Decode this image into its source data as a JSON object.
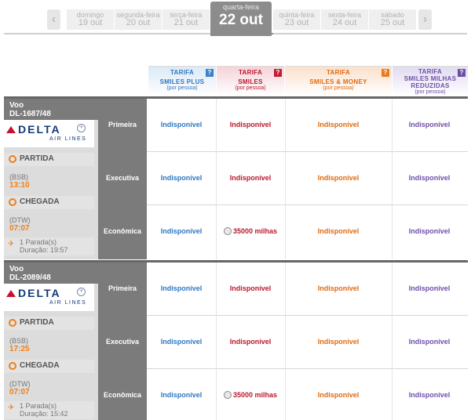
{
  "date_nav": {
    "prev_icon": "chevron-left-icon",
    "next_icon": "chevron-right-icon",
    "days": [
      {
        "weekday": "domingo",
        "date": "19 out"
      },
      {
        "weekday": "segunda-feira",
        "date": "20 out"
      },
      {
        "weekday": "terça-feira",
        "date": "21 out"
      },
      {
        "weekday": "quarta-feira",
        "date": "22 out",
        "selected": true
      },
      {
        "weekday": "quinta-feira",
        "date": "23 out"
      },
      {
        "weekday": "sexta-feira",
        "date": "24 out"
      },
      {
        "weekday": "sábado",
        "date": "25 out"
      }
    ]
  },
  "fare_headers": [
    {
      "line1": "TARIFA",
      "line2": "SMILES PLUS",
      "line3": "",
      "per_person": "(por pessoa)",
      "help": "?",
      "color": "#2e77c0"
    },
    {
      "line1": "TARIFA",
      "line2": "SMILES",
      "line3": "",
      "per_person": "(por pessoa)",
      "help": "?",
      "color": "#b9182c"
    },
    {
      "line1": "TARIFA",
      "line2": "SMILES & MONEY",
      "line3": "",
      "per_person": "(por pessoa)",
      "help": "?",
      "color": "#e06a10"
    },
    {
      "line1": "TARIFA",
      "line2": "SMILES MILHAS",
      "line3": "REDUZIDAS",
      "per_person": "(por pessoa)",
      "help": "?",
      "color": "#6f4fa8"
    }
  ],
  "flights": [
    {
      "voo_label": "Voo",
      "number": "DL-1687/48",
      "airline_logo": {
        "word": "DELTA",
        "sub": "AIR LINES"
      },
      "departure_label": "PARTIDA",
      "departure_code": "(BSB)",
      "departure_time": "13:10",
      "arrival_label": "CHEGADA",
      "arrival_code": "(DTW)",
      "arrival_time": "07:07",
      "stops": "1 Parada(s)",
      "duration": "Duração: 19:57",
      "cabins": [
        {
          "name": "Primeira",
          "plus": "Indisponível",
          "smiles": "Indisponível",
          "money": "Indisponível",
          "reduzidas": "Indisponível"
        },
        {
          "name": "Executiva",
          "plus": "Indisponível",
          "smiles": "Indisponível",
          "money": "Indisponível",
          "reduzidas": "Indisponível"
        },
        {
          "name": "Econômica",
          "plus": "Indisponível",
          "smiles": "35000 milhas",
          "money": "Indisponível",
          "reduzidas": "Indisponível"
        }
      ]
    },
    {
      "voo_label": "Voo",
      "number": "DL-2089/48",
      "airline_logo": {
        "word": "DELTA",
        "sub": "AIR LINES"
      },
      "departure_label": "PARTIDA",
      "departure_code": "(BSB)",
      "departure_time": "17:25",
      "arrival_label": "CHEGADA",
      "arrival_code": "(DTW)",
      "arrival_time": "07:07",
      "stops": "1 Parada(s)",
      "duration": "Duração: 15:42",
      "cabins": [
        {
          "name": "Primeira",
          "plus": "Indisponível",
          "smiles": "Indisponível",
          "money": "Indisponível",
          "reduzidas": "Indisponível"
        },
        {
          "name": "Executiva",
          "plus": "Indisponível",
          "smiles": "Indisponível",
          "money": "Indisponível",
          "reduzidas": "Indisponível"
        },
        {
          "name": "Econômica",
          "plus": "Indisponível",
          "smiles": "35000 milhas",
          "money": "Indisponível",
          "reduzidas": "Indisponível"
        }
      ]
    }
  ]
}
